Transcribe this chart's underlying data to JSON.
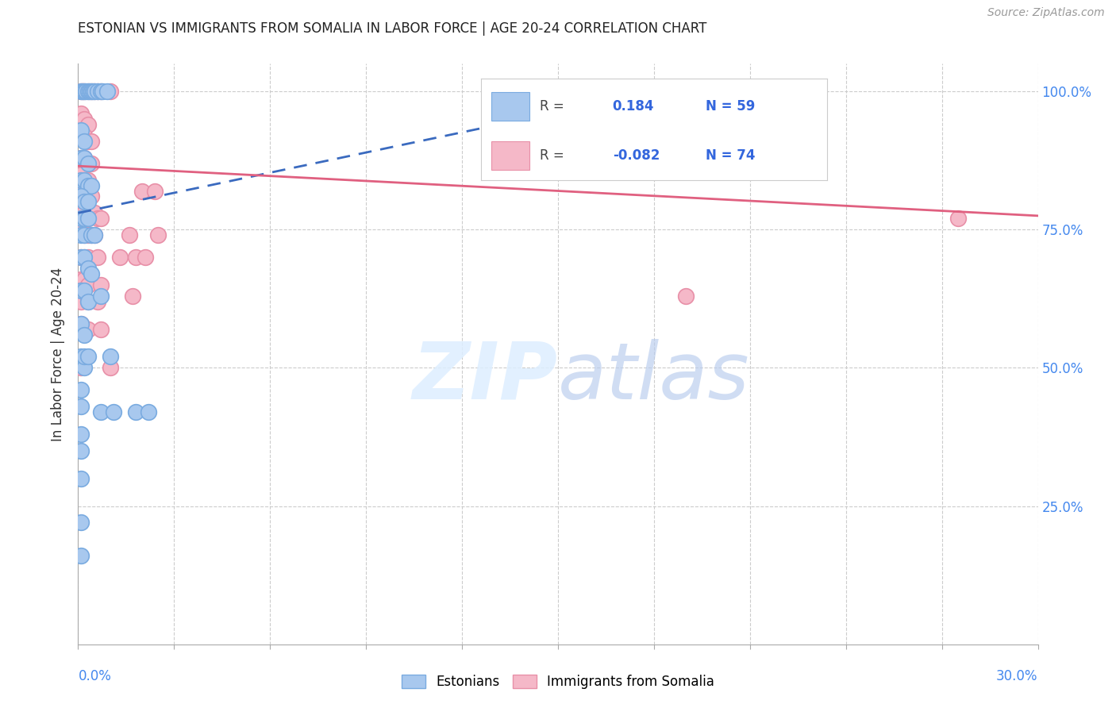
{
  "title": "ESTONIAN VS IMMIGRANTS FROM SOMALIA IN LABOR FORCE | AGE 20-24 CORRELATION CHART",
  "source": "Source: ZipAtlas.com",
  "ylabel": "In Labor Force | Age 20-24",
  "estonian_color": "#a8c8ee",
  "estonia_edge_color": "#7aabe0",
  "somalia_color": "#f5b8c8",
  "somalia_edge_color": "#e890a8",
  "estonian_line_color": "#3a6abf",
  "somalia_line_color": "#e06080",
  "watermark_zip": "ZIP",
  "watermark_atlas": "atlas",
  "xlim": [
    0.0,
    0.3
  ],
  "ylim": [
    0.0,
    1.05
  ],
  "estonian_line_x": [
    0.0,
    0.185
  ],
  "estonian_line_y": [
    0.78,
    1.005
  ],
  "somalia_line_x": [
    0.0,
    0.3
  ],
  "somalia_line_y": [
    0.865,
    0.775
  ],
  "estonian_points": [
    [
      0.001,
      1.0
    ],
    [
      0.0015,
      1.0
    ],
    [
      0.002,
      1.0
    ],
    [
      0.0025,
      1.0
    ],
    [
      0.003,
      1.0
    ],
    [
      0.0035,
      1.0
    ],
    [
      0.004,
      1.0
    ],
    [
      0.0045,
      1.0
    ],
    [
      0.005,
      1.0
    ],
    [
      0.006,
      1.0
    ],
    [
      0.007,
      1.0
    ],
    [
      0.0075,
      1.0
    ],
    [
      0.009,
      1.0
    ],
    [
      0.001,
      0.93
    ],
    [
      0.002,
      0.91
    ],
    [
      0.001,
      0.88
    ],
    [
      0.002,
      0.88
    ],
    [
      0.003,
      0.87
    ],
    [
      0.001,
      0.84
    ],
    [
      0.002,
      0.84
    ],
    [
      0.003,
      0.83
    ],
    [
      0.004,
      0.83
    ],
    [
      0.001,
      0.81
    ],
    [
      0.002,
      0.8
    ],
    [
      0.003,
      0.8
    ],
    [
      0.001,
      0.77
    ],
    [
      0.002,
      0.77
    ],
    [
      0.003,
      0.77
    ],
    [
      0.001,
      0.74
    ],
    [
      0.002,
      0.74
    ],
    [
      0.004,
      0.74
    ],
    [
      0.005,
      0.74
    ],
    [
      0.001,
      0.7
    ],
    [
      0.002,
      0.7
    ],
    [
      0.003,
      0.68
    ],
    [
      0.004,
      0.67
    ],
    [
      0.001,
      0.64
    ],
    [
      0.002,
      0.64
    ],
    [
      0.003,
      0.62
    ],
    [
      0.007,
      0.63
    ],
    [
      0.001,
      0.58
    ],
    [
      0.002,
      0.56
    ],
    [
      0.001,
      0.52
    ],
    [
      0.002,
      0.5
    ],
    [
      0.001,
      0.46
    ],
    [
      0.001,
      0.43
    ],
    [
      0.007,
      0.42
    ],
    [
      0.011,
      0.42
    ],
    [
      0.001,
      0.38
    ],
    [
      0.001,
      0.35
    ],
    [
      0.001,
      0.3
    ],
    [
      0.001,
      0.22
    ],
    [
      0.018,
      0.42
    ],
    [
      0.022,
      0.42
    ],
    [
      0.001,
      0.16
    ],
    [
      0.002,
      0.52
    ],
    [
      0.003,
      0.52
    ],
    [
      0.01,
      0.52
    ]
  ],
  "somalia_points": [
    [
      0.001,
      1.0
    ],
    [
      0.0015,
      1.0
    ],
    [
      0.002,
      1.0
    ],
    [
      0.003,
      1.0
    ],
    [
      0.004,
      1.0
    ],
    [
      0.005,
      1.0
    ],
    [
      0.006,
      1.0
    ],
    [
      0.007,
      1.0
    ],
    [
      0.01,
      1.0
    ],
    [
      0.001,
      0.96
    ],
    [
      0.002,
      0.95
    ],
    [
      0.003,
      0.94
    ],
    [
      0.001,
      0.92
    ],
    [
      0.002,
      0.92
    ],
    [
      0.003,
      0.91
    ],
    [
      0.004,
      0.91
    ],
    [
      0.001,
      0.88
    ],
    [
      0.002,
      0.88
    ],
    [
      0.003,
      0.87
    ],
    [
      0.004,
      0.87
    ],
    [
      0.001,
      0.85
    ],
    [
      0.002,
      0.84
    ],
    [
      0.003,
      0.84
    ],
    [
      0.001,
      0.82
    ],
    [
      0.002,
      0.81
    ],
    [
      0.003,
      0.81
    ],
    [
      0.004,
      0.81
    ],
    [
      0.001,
      0.78
    ],
    [
      0.002,
      0.78
    ],
    [
      0.003,
      0.77
    ],
    [
      0.005,
      0.78
    ],
    [
      0.006,
      0.77
    ],
    [
      0.007,
      0.77
    ],
    [
      0.001,
      0.75
    ],
    [
      0.002,
      0.74
    ],
    [
      0.003,
      0.74
    ],
    [
      0.004,
      0.74
    ],
    [
      0.005,
      0.74
    ],
    [
      0.001,
      0.7
    ],
    [
      0.002,
      0.7
    ],
    [
      0.003,
      0.7
    ],
    [
      0.006,
      0.7
    ],
    [
      0.013,
      0.7
    ],
    [
      0.001,
      0.66
    ],
    [
      0.002,
      0.66
    ],
    [
      0.003,
      0.65
    ],
    [
      0.007,
      0.65
    ],
    [
      0.001,
      0.62
    ],
    [
      0.003,
      0.62
    ],
    [
      0.006,
      0.62
    ],
    [
      0.001,
      0.58
    ],
    [
      0.003,
      0.57
    ],
    [
      0.007,
      0.57
    ],
    [
      0.001,
      0.5
    ],
    [
      0.01,
      0.5
    ],
    [
      0.017,
      0.63
    ],
    [
      0.02,
      0.82
    ],
    [
      0.024,
      0.82
    ],
    [
      0.016,
      0.74
    ],
    [
      0.025,
      0.74
    ],
    [
      0.018,
      0.7
    ],
    [
      0.021,
      0.7
    ],
    [
      0.19,
      0.63
    ],
    [
      0.275,
      0.77
    ]
  ]
}
